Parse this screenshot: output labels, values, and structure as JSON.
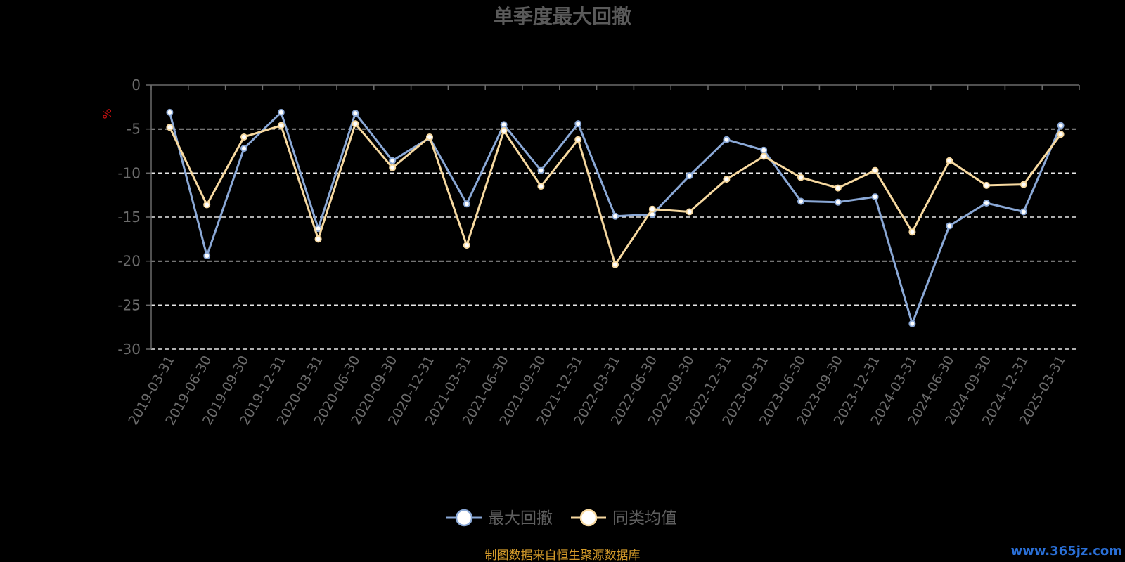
{
  "chart_data": {
    "type": "line",
    "title": "单季度最大回撤",
    "ylabel": "%",
    "ylim": [
      -30,
      0
    ],
    "yticks": [
      0,
      -5,
      -10,
      -15,
      -20,
      -25,
      -30
    ],
    "grid": true,
    "legend_position": "bottom",
    "categories": [
      "2019-03-31",
      "2019-06-30",
      "2019-09-30",
      "2019-12-31",
      "2020-03-31",
      "2020-06-30",
      "2020-09-30",
      "2020-12-31",
      "2021-03-31",
      "2021-06-30",
      "2021-09-30",
      "2021-12-31",
      "2022-03-31",
      "2022-06-30",
      "2022-09-30",
      "2022-12-31",
      "2023-03-31",
      "2023-06-30",
      "2023-09-30",
      "2023-12-31",
      "2024-03-31",
      "2024-06-30",
      "2024-09-30",
      "2024-12-31",
      "2025-03-31"
    ],
    "series": [
      {
        "name": "最大回撤",
        "color": "#8aa8d6",
        "values": [
          -3.1,
          -19.4,
          -7.2,
          -3.1,
          -16.3,
          -3.2,
          -8.6,
          -6.0,
          -13.5,
          -4.5,
          -9.7,
          -4.4,
          -14.9,
          -14.7,
          -10.3,
          -6.2,
          -7.4,
          -13.2,
          -13.3,
          -12.7,
          -27.1,
          -16.0,
          -13.4,
          -14.4,
          -4.6
        ]
      },
      {
        "name": "同类均值",
        "color": "#f7d9a0",
        "values": [
          -4.8,
          -13.6,
          -5.9,
          -4.6,
          -17.5,
          -4.4,
          -9.4,
          -5.9,
          -18.2,
          -5.2,
          -11.5,
          -6.2,
          -20.4,
          -14.1,
          -14.4,
          -10.7,
          -8.1,
          -10.5,
          -11.7,
          -9.7,
          -16.7,
          -8.6,
          -11.4,
          -11.3,
          -5.6
        ]
      }
    ]
  },
  "source_note": "制图数据来自恒生聚源数据库",
  "watermark": "www.365jz.com",
  "colors": {
    "background": "#000000",
    "axis": "#6b6b6b",
    "grid": "#e8e8e8"
  }
}
